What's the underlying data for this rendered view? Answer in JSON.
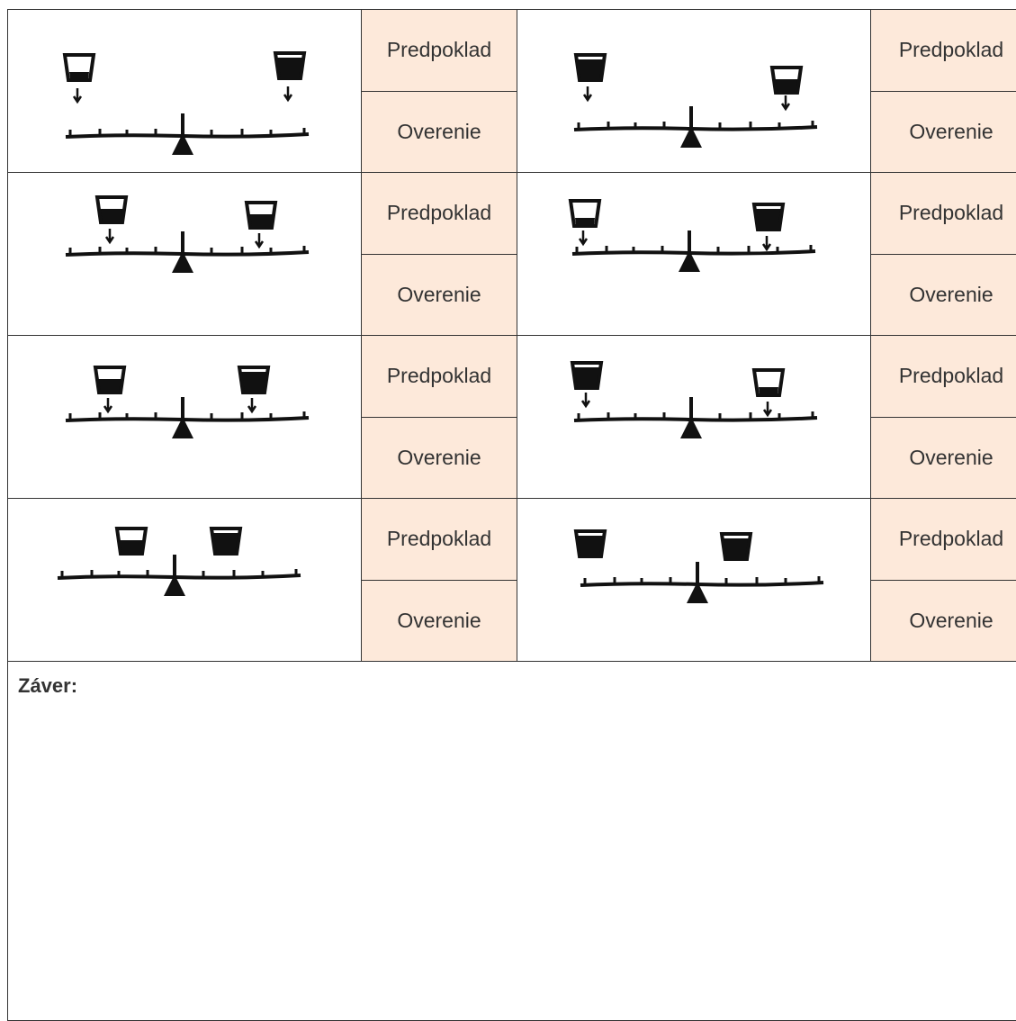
{
  "rows": [
    {
      "items": [
        {
          "prediction": "Predpoklad",
          "verification": "Overenie"
        },
        {
          "prediction": "Predpoklad",
          "verification": "Overenie"
        }
      ]
    },
    {
      "items": [
        {
          "prediction": "Predpoklad",
          "verification": "Overenie"
        },
        {
          "prediction": "Predpoklad",
          "verification": "Overenie"
        }
      ]
    },
    {
      "items": [
        {
          "prediction": "Predpoklad",
          "verification": "Overenie"
        },
        {
          "prediction": "Predpoklad",
          "verification": "Overenie"
        }
      ]
    },
    {
      "items": [
        {
          "prediction": "Predpoklad",
          "verification": "Overenie"
        },
        {
          "prediction": "Predpoklad",
          "verification": "Overenie"
        }
      ]
    }
  ],
  "conclusion": "Záver:"
}
